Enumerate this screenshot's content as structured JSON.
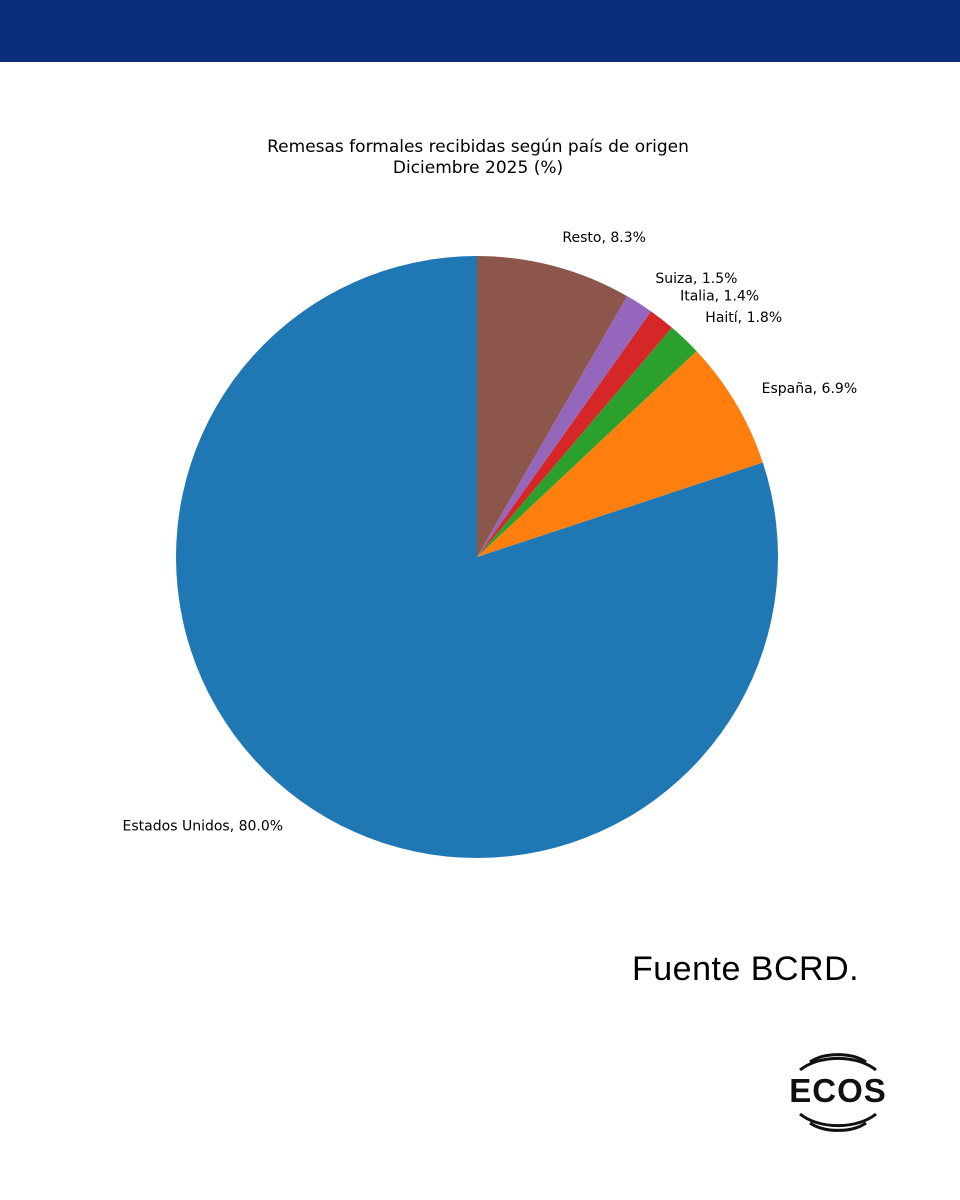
{
  "chart_data": {
    "type": "pie",
    "title": "Remesas formales recibidas según país de origen",
    "subtitle": "Diciembre 2025 (%)",
    "slices": [
      {
        "label": "Estados Unidos",
        "value": 80.0,
        "display": "Estados Unidos, 80.0%",
        "color": "#1f77b4"
      },
      {
        "label": "España",
        "value": 6.9,
        "display": "España, 6.9%",
        "color": "#ff7f0e"
      },
      {
        "label": "Haití",
        "value": 1.8,
        "display": "Haití, 1.8%",
        "color": "#2ca02c"
      },
      {
        "label": "Italia",
        "value": 1.4,
        "display": "Italia, 1.4%",
        "color": "#d62728"
      },
      {
        "label": "Suiza",
        "value": 1.5,
        "display": "Suiza, 1.5%",
        "color": "#9467bd"
      },
      {
        "label": "Resto",
        "value": 8.3,
        "display": "Resto, 8.3%",
        "color": "#8c564b"
      }
    ],
    "start_angle": "top",
    "direction": "counterclockwise-from-top (Estados Unidos first)"
  },
  "header": {
    "banner_color": "#0a2c7a"
  },
  "footer": {
    "source": "Fuente BCRD.",
    "logo_text": "ECOS"
  }
}
